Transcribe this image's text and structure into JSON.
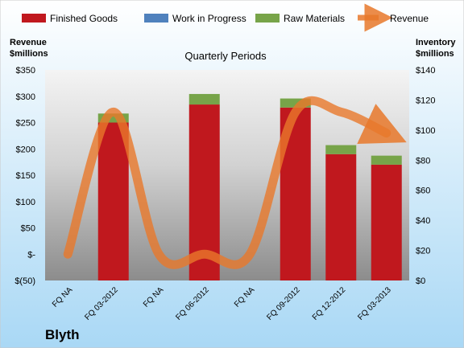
{
  "chart_data": {
    "type": "bar",
    "title": "Quarterly Periods",
    "company": "Blyth",
    "categories": [
      "FQ NA",
      "FQ 03-2012",
      "FQ NA",
      "FQ 06-2012",
      "FQ NA",
      "FQ 09-2012",
      "FQ 12-2012",
      "FQ 03-2013"
    ],
    "left_axis": {
      "label_line1": "Revenue",
      "label_line2": "$millions",
      "ylim": [
        -50,
        350
      ],
      "ticks": [
        350,
        300,
        250,
        200,
        150,
        100,
        50,
        0,
        -50
      ],
      "tick_labels": [
        "$350",
        "$300",
        "$250",
        "$200",
        "$150",
        "$100",
        "$50",
        "$-",
        "$(50)"
      ]
    },
    "right_axis": {
      "label_line1": "Inventory",
      "label_line2": "$millions",
      "ylim": [
        0,
        140
      ],
      "ticks": [
        140,
        120,
        100,
        80,
        60,
        40,
        20,
        0
      ],
      "tick_labels": [
        "$140",
        "$120",
        "$100",
        "$80",
        "$60",
        "$40",
        "$20",
        "$0"
      ]
    },
    "series": [
      {
        "name": "Finished Goods",
        "axis": "right",
        "color": "#c0181e",
        "values": [
          null,
          105,
          null,
          117,
          null,
          115,
          84,
          77
        ]
      },
      {
        "name": "Work in Progress",
        "axis": "right",
        "color": "#4f81bd",
        "values": [
          null,
          0,
          null,
          0,
          null,
          0,
          0,
          0
        ]
      },
      {
        "name": "Raw Materials",
        "axis": "right",
        "color": "#77a449",
        "values": [
          null,
          6,
          null,
          7,
          null,
          6,
          6,
          6
        ]
      },
      {
        "name": "Revenue",
        "axis": "left",
        "color": "#e8782a",
        "type": "line",
        "values": [
          0,
          270,
          0,
          0,
          0,
          270,
          270,
          230
        ]
      }
    ],
    "legend_position": "top",
    "grid": false
  }
}
